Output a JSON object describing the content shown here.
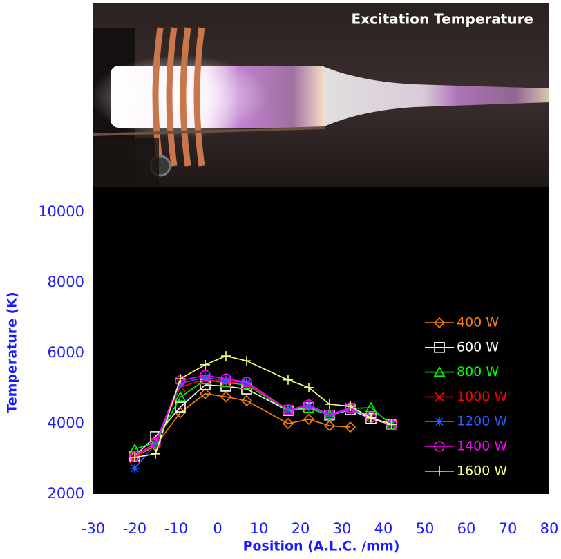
{
  "title": "Excitation Temperature",
  "chart_data": {
    "type": "line",
    "x_label": "Position (A.L.C. /mm)",
    "y_label": "Temperature (K)",
    "xlim": [
      -30,
      80
    ],
    "xticks": [
      -30,
      -20,
      -10,
      0,
      10,
      20,
      30,
      40,
      50,
      60,
      70,
      80
    ],
    "ylim": [
      2000,
      10000
    ],
    "yticks": [
      2000,
      4000,
      6000,
      8000,
      10000
    ],
    "grid": false,
    "legend": "right",
    "x": [
      -20,
      -15,
      -9,
      -3,
      2,
      7,
      17,
      22,
      27,
      32,
      37,
      42
    ],
    "series": [
      {
        "name": "400 W",
        "color": "#ff8000",
        "marker": "diamond",
        "values": [
          3060,
          3370,
          4310,
          4850,
          4760,
          4650,
          4000,
          4120,
          3940,
          3900,
          null,
          null
        ]
      },
      {
        "name": "600 W",
        "color": "#ffffff",
        "marker": "square",
        "values": [
          3080,
          3630,
          4470,
          5100,
          5060,
          4980,
          4370,
          4450,
          4240,
          4390,
          4140,
          3960
        ]
      },
      {
        "name": "800 W",
        "color": "#00ff00",
        "marker": "triangle",
        "values": [
          3270,
          3470,
          4750,
          5240,
          5160,
          5100,
          4370,
          4430,
          4250,
          4430,
          4450,
          3960
        ]
      },
      {
        "name": "1000 W",
        "color": "#ff0000",
        "marker": "cross",
        "values": [
          3020,
          3470,
          5040,
          5250,
          5180,
          5120,
          4390,
          4490,
          4250,
          4450,
          4180,
          3960
        ]
      },
      {
        "name": "1200 W",
        "color": "#2a5cff",
        "marker": "star",
        "values": [
          2730,
          3410,
          5140,
          5310,
          5220,
          5160,
          4390,
          4490,
          4240,
          4410,
          4180,
          3960
        ]
      },
      {
        "name": "1400 W",
        "color": "#ff00ff",
        "marker": "circle",
        "values": [
          3080,
          3450,
          5220,
          5370,
          5270,
          5180,
          4390,
          4530,
          4250,
          4450,
          4180,
          3960
        ]
      },
      {
        "name": "1600 W",
        "color": "#ffff80",
        "marker": "plus",
        "values": [
          3040,
          3140,
          5270,
          5670,
          5920,
          5780,
          5240,
          5020,
          4550,
          4490,
          4160,
          3980
        ]
      }
    ]
  }
}
